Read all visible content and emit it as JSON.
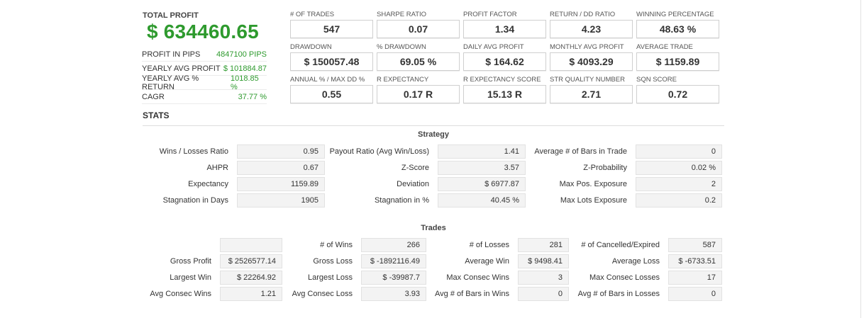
{
  "summary": {
    "total_profit_label": "TOTAL PROFIT",
    "total_profit_value": "$ 634460.65",
    "rows": [
      {
        "label": "PROFIT IN PIPS",
        "value": "4847100 PIPS"
      },
      {
        "label": "YEARLY AVG PROFIT",
        "value": "$ 101884.87"
      },
      {
        "label": "YEARLY AVG % RETURN",
        "value": "1018.85 %"
      },
      {
        "label": "CAGR",
        "value": "37.77 %"
      }
    ]
  },
  "kpis": [
    {
      "label": "# OF TRADES",
      "value": "547"
    },
    {
      "label": "SHARPE RATIO",
      "value": "0.07"
    },
    {
      "label": "PROFIT FACTOR",
      "value": "1.34"
    },
    {
      "label": "RETURN / DD RATIO",
      "value": "4.23"
    },
    {
      "label": "WINNING PERCENTAGE",
      "value": "48.63 %"
    },
    {
      "label": "DRAWDOWN",
      "value": "$ 150057.48"
    },
    {
      "label": "% DRAWDOWN",
      "value": "69.05 %"
    },
    {
      "label": "DAILY AVG PROFIT",
      "value": "$ 164.62"
    },
    {
      "label": "MONTHLY AVG PROFIT",
      "value": "$ 4093.29"
    },
    {
      "label": "AVERAGE TRADE",
      "value": "$ 1159.89"
    },
    {
      "label": "ANNUAL % / MAX DD %",
      "value": "0.55"
    },
    {
      "label": "R EXPECTANCY",
      "value": "0.17 R"
    },
    {
      "label": "R EXPECTANCY SCORE",
      "value": "15.13 R"
    },
    {
      "label": "STR QUALITY NUMBER",
      "value": "2.71"
    },
    {
      "label": "SQN SCORE",
      "value": "0.72"
    }
  ],
  "stats_title": "STATS",
  "strategy": {
    "title": "Strategy",
    "rows": [
      [
        {
          "label": "Wins / Losses Ratio",
          "value": "0.95"
        },
        {
          "label": "Payout Ratio (Avg Win/Loss)",
          "value": "1.41"
        },
        {
          "label": "Average # of Bars in Trade",
          "value": "0"
        }
      ],
      [
        {
          "label": "AHPR",
          "value": "0.67"
        },
        {
          "label": "Z-Score",
          "value": "3.57"
        },
        {
          "label": "Z-Probability",
          "value": "0.02 %"
        }
      ],
      [
        {
          "label": "Expectancy",
          "value": "1159.89"
        },
        {
          "label": "Deviation",
          "value": "$ 6977.87"
        },
        {
          "label": "Max Pos. Exposure",
          "value": "2"
        }
      ],
      [
        {
          "label": "Stagnation in Days",
          "value": "1905"
        },
        {
          "label": "Stagnation in %",
          "value": "40.45 %"
        },
        {
          "label": "Max Lots Exposure",
          "value": "0.2"
        }
      ]
    ]
  },
  "trades": {
    "title": "Trades",
    "rows": [
      [
        {
          "label": "",
          "value": ""
        },
        {
          "label": "# of Wins",
          "value": "266"
        },
        {
          "label": "# of Losses",
          "value": "281"
        },
        {
          "label": "# of Cancelled/Expired",
          "value": "587"
        }
      ],
      [
        {
          "label": "Gross Profit",
          "value": "$ 2526577.14"
        },
        {
          "label": "Gross Loss",
          "value": "$ -1892116.49"
        },
        {
          "label": "Average Win",
          "value": "$ 9498.41"
        },
        {
          "label": "Average Loss",
          "value": "$ -6733.51"
        }
      ],
      [
        {
          "label": "Largest Win",
          "value": "$ 22264.92"
        },
        {
          "label": "Largest Loss",
          "value": "$ -39987.7"
        },
        {
          "label": "Max Consec Wins",
          "value": "3"
        },
        {
          "label": "Max Consec Losses",
          "value": "17"
        }
      ],
      [
        {
          "label": "Avg Consec Wins",
          "value": "1.21"
        },
        {
          "label": "Avg Consec Loss",
          "value": "3.93"
        },
        {
          "label": "Avg # of Bars in Wins",
          "value": "0"
        },
        {
          "label": "Avg # of Bars in Losses",
          "value": "0"
        }
      ]
    ]
  }
}
